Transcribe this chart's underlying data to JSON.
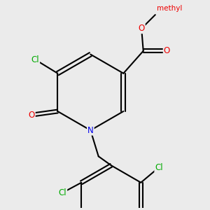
{
  "bg_color": "#ebebeb",
  "bond_color": "#000000",
  "atom_colors": {
    "Cl": "#00aa00",
    "N": "#0000ee",
    "O": "#ee0000",
    "C": "#000000"
  },
  "bond_width": 1.5,
  "dbo": 0.055,
  "fs": 8.5
}
